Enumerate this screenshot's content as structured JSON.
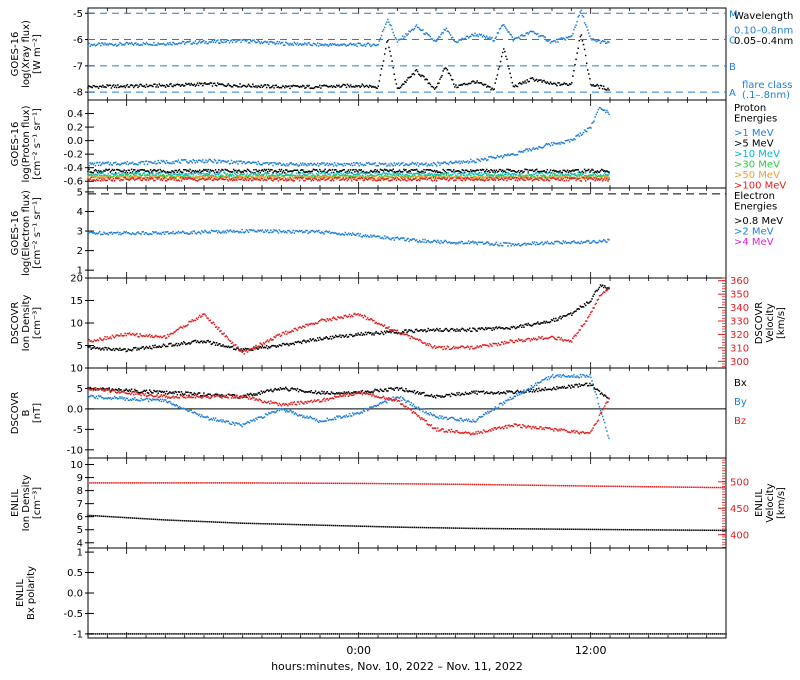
{
  "xaxis": {
    "label": "hours:minutes, Nov. 10, 2022 – Nov. 11, 2022",
    "range_hours": [
      -14,
      19
    ],
    "ticks": [
      {
        "h": 0,
        "label": "0:00"
      },
      {
        "h": 12,
        "label": "12:00"
      }
    ],
    "data_end_hours": 13
  },
  "chart_data": [
    {
      "id": "xray",
      "type": "scatter",
      "ylabel": [
        "GOES-16",
        "log(Xray flux)",
        "[W m⁻²]"
      ],
      "ylim": [
        -8.3,
        -4.8
      ],
      "yticks": [
        -8,
        -7,
        -6,
        -5
      ],
      "legend": {
        "title": "Wavelength",
        "entries": [
          {
            "text": "0.10–0.8nm",
            "color": "#1f7fd6"
          },
          {
            "text": "0.05–0.4nm",
            "color": "#000000"
          }
        ],
        "footer": [
          "flare class",
          "(.1–.8nm)"
        ]
      },
      "flare_classes": [
        {
          "class": "M",
          "level": -5
        },
        {
          "class": "C",
          "level": -6
        },
        {
          "class": "B",
          "level": -7
        },
        {
          "class": "A",
          "level": -8
        }
      ],
      "series": [
        {
          "name": "0.10–0.8nm",
          "color": "#1f7fd6",
          "x": [
            -14,
            -10,
            -8,
            -6,
            -4,
            -2,
            0,
            1,
            1.5,
            2,
            3,
            4,
            4.5,
            5,
            6,
            7,
            7.5,
            8,
            9,
            10,
            11,
            11.5,
            12,
            13
          ],
          "y": [
            -6.2,
            -6.15,
            -6.1,
            -6.05,
            -6.15,
            -6.2,
            -6.2,
            -6.2,
            -5.2,
            -6.1,
            -5.5,
            -6.1,
            -5.6,
            -6.1,
            -5.8,
            -6.0,
            -5.4,
            -6.0,
            -5.7,
            -6.1,
            -5.9,
            -4.9,
            -6.0,
            -6.15
          ]
        },
        {
          "name": "0.05–0.4nm",
          "color": "#000000",
          "x": [
            -14,
            -10,
            -8,
            -6,
            -4,
            -2,
            0,
            1,
            1.5,
            2,
            3,
            4,
            4.5,
            5,
            6,
            7,
            7.5,
            8,
            9,
            10,
            11,
            11.5,
            12,
            13
          ],
          "y": [
            -7.8,
            -7.75,
            -7.7,
            -7.75,
            -7.8,
            -7.8,
            -7.75,
            -7.8,
            -6.0,
            -7.9,
            -7.2,
            -7.9,
            -7.0,
            -7.8,
            -7.6,
            -7.9,
            -6.3,
            -7.8,
            -7.5,
            -7.7,
            -7.7,
            -5.7,
            -7.7,
            -7.9
          ]
        }
      ]
    },
    {
      "id": "proton",
      "type": "scatter",
      "ylabel": [
        "GOES-16",
        "log(Proton flux)",
        "[cm⁻² s⁻¹ sr⁻¹]"
      ],
      "ylim": [
        -0.7,
        0.6
      ],
      "yticks": [
        -0.6,
        -0.4,
        -0.2,
        0.0,
        0.2,
        0.4
      ],
      "legend": {
        "title": [
          "Proton",
          "Energies"
        ],
        "entries": [
          {
            "text": ">1 MeV",
            "color": "#1f7fd6"
          },
          {
            "text": ">5 MeV",
            "color": "#000000"
          },
          {
            "text": ">10 MeV",
            "color": "#00bcd4"
          },
          {
            "text": ">30 MeV",
            "color": "#2ecc40"
          },
          {
            "text": ">50 MeV",
            "color": "#f0a030"
          },
          {
            "text": ">100 MeV",
            "color": "#e02020"
          }
        ]
      },
      "series": [
        {
          "name": ">1 MeV",
          "color": "#1f7fd6",
          "x": [
            -14,
            -8,
            -4,
            0,
            4,
            6,
            8,
            10,
            11,
            12,
            12.5,
            13
          ],
          "y": [
            -0.35,
            -0.3,
            -0.35,
            -0.35,
            -0.35,
            -0.3,
            -0.2,
            -0.05,
            0.0,
            0.2,
            0.5,
            0.4
          ]
        },
        {
          "name": ">5 MeV",
          "color": "#000000",
          "x": [
            -14,
            0,
            13
          ],
          "y": [
            -0.45,
            -0.45,
            -0.45
          ]
        },
        {
          "name": ">10 MeV",
          "color": "#00bcd4",
          "x": [
            -14,
            0,
            13
          ],
          "y": [
            -0.5,
            -0.5,
            -0.5
          ]
        },
        {
          "name": ">30 MeV",
          "color": "#2ecc40",
          "x": [
            -14,
            0,
            13
          ],
          "y": [
            -0.53,
            -0.53,
            -0.53
          ]
        },
        {
          "name": ">50 MeV",
          "color": "#f0a030",
          "x": [
            -14,
            0,
            13
          ],
          "y": [
            -0.55,
            -0.55,
            -0.55
          ]
        },
        {
          "name": ">100 MeV",
          "color": "#e02020",
          "x": [
            -14,
            0,
            13
          ],
          "y": [
            -0.57,
            -0.57,
            -0.57
          ]
        }
      ]
    },
    {
      "id": "electron",
      "type": "scatter",
      "ylabel": [
        "GOES-16",
        "log(Electron flux)",
        "[cm⁻² s⁻¹ sr⁻¹]"
      ],
      "ylim": [
        0.6,
        5.2
      ],
      "yticks": [
        1,
        2,
        3,
        4,
        5
      ],
      "hline": 4.9,
      "legend": {
        "title": [
          "Electron",
          "Energies"
        ],
        "entries": [
          {
            "text": ">0.8 MeV",
            "color": "#000000"
          },
          {
            "text": ">2 MeV",
            "color": "#1f7fd6"
          },
          {
            "text": ">4 MeV",
            "color": "#e020e0"
          }
        ]
      },
      "series": [
        {
          "name": ">2 MeV",
          "color": "#1f7fd6",
          "x": [
            -14,
            -10,
            -6,
            -2,
            0,
            2,
            4,
            6,
            8,
            10,
            12,
            13
          ],
          "y": [
            2.9,
            2.9,
            3.0,
            2.95,
            2.8,
            2.6,
            2.45,
            2.4,
            2.3,
            2.4,
            2.45,
            2.5
          ]
        }
      ]
    },
    {
      "id": "dscovr_plasma",
      "type": "scatter",
      "ylabel": [
        "DSCOVR",
        "Ion Density",
        "[cm⁻³]"
      ],
      "ylim": [
        0,
        20
      ],
      "yticks": [
        5,
        10,
        15,
        20
      ],
      "ylabel_right": [
        "DSCOVR",
        "Velocity",
        "[km/s]"
      ],
      "ylim_right": [
        295,
        362
      ],
      "yticks_right": [
        300,
        310,
        320,
        330,
        340,
        350,
        360
      ],
      "series": [
        {
          "name": "Ion Density",
          "axis": "left",
          "color": "#000000",
          "x": [
            -14,
            -12,
            -10,
            -8,
            -6,
            -4,
            -2,
            0,
            2,
            4,
            6,
            8,
            10,
            11,
            12,
            12.5,
            13
          ],
          "y": [
            4.5,
            4.0,
            5.0,
            6.0,
            4.0,
            5.0,
            6.5,
            7.5,
            8.0,
            8.5,
            8.5,
            9.0,
            10.5,
            12.0,
            15.0,
            18.5,
            17.5
          ]
        },
        {
          "name": "Velocity",
          "axis": "right",
          "color": "#e02020",
          "x": [
            -14,
            -12,
            -10,
            -8,
            -6,
            -4,
            -2,
            0,
            2,
            4,
            6,
            8,
            10,
            11,
            12,
            12.5,
            13
          ],
          "y": [
            315,
            320,
            318,
            335,
            306,
            320,
            330,
            335,
            322,
            310,
            310,
            315,
            318,
            315,
            335,
            350,
            355
          ]
        }
      ]
    },
    {
      "id": "dscovr_mag",
      "type": "scatter",
      "ylabel": [
        "DSCOVR",
        "B",
        "[nT]"
      ],
      "ylim": [
        -12,
        10
      ],
      "yticks": [
        -10,
        -5,
        0,
        5,
        10
      ],
      "hline": 0,
      "legend": {
        "entries": [
          {
            "text": "Bx",
            "color": "#000000"
          },
          {
            "text": "By",
            "color": "#1f7fd6"
          },
          {
            "text": "Bz",
            "color": "#e02020"
          }
        ]
      },
      "series": [
        {
          "name": "Bx",
          "color": "#000000",
          "x": [
            -14,
            -10,
            -6,
            -4,
            -2,
            0,
            2,
            4,
            6,
            8,
            10,
            12,
            13
          ],
          "y": [
            5,
            4,
            3,
            5,
            4,
            4,
            5,
            3,
            4,
            4,
            5,
            6,
            2
          ]
        },
        {
          "name": "By",
          "color": "#1f7fd6",
          "x": [
            -14,
            -10,
            -8,
            -6,
            -4,
            -2,
            0,
            2,
            4,
            6,
            8,
            10,
            12,
            13
          ],
          "y": [
            3,
            2,
            -2,
            -4,
            0,
            -3,
            -1,
            3,
            -2,
            -3,
            3,
            8,
            8,
            -8
          ]
        },
        {
          "name": "Bz",
          "color": "#e02020",
          "x": [
            -14,
            -10,
            -6,
            -4,
            -2,
            0,
            2,
            4,
            6,
            8,
            10,
            12,
            13
          ],
          "y": [
            5,
            3,
            3,
            1,
            2,
            4,
            2,
            -5,
            -6,
            -4,
            -5,
            -6,
            3
          ]
        }
      ]
    },
    {
      "id": "enlil_plasma",
      "type": "scatter",
      "ylabel": [
        "ENLIL",
        "Ion Density",
        "[cm⁻³]"
      ],
      "ylim": [
        3.6,
        10.5
      ],
      "yticks": [
        4,
        5,
        6,
        7,
        8,
        9,
        10
      ],
      "ylabel_right": [
        "ENLIL",
        "Velocity",
        "[km/s]"
      ],
      "ylim_right": [
        375,
        545
      ],
      "yticks_right": [
        400,
        450,
        500
      ],
      "series": [
        {
          "name": "Ion Density",
          "axis": "left",
          "color": "#000000",
          "x": [
            -14,
            -10,
            -6,
            -2,
            2,
            6,
            10,
            14,
            19
          ],
          "y": [
            6.1,
            5.75,
            5.5,
            5.35,
            5.2,
            5.1,
            5.05,
            5.0,
            4.95
          ]
        },
        {
          "name": "Velocity",
          "axis": "right",
          "color": "#e02020",
          "x": [
            -14,
            -6,
            0,
            6,
            12,
            19
          ],
          "y": [
            498,
            498,
            497,
            495,
            492,
            489
          ]
        }
      ]
    },
    {
      "id": "enlil_polarity",
      "type": "scatter",
      "ylabel": [
        "ENLIL",
        "Bx polarity"
      ],
      "ylim": [
        -1.1,
        1.1
      ],
      "yticks": [
        -1.0,
        -0.5,
        0.0,
        0.5,
        1.0
      ],
      "series": [
        {
          "name": "Bx polarity",
          "color": "#000000",
          "x": [
            -14,
            19
          ],
          "y": [
            -1.0,
            -1.0
          ]
        }
      ]
    }
  ]
}
